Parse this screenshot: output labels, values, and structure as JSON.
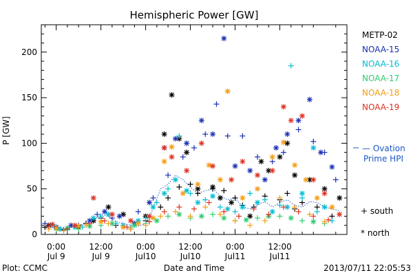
{
  "chart_data": {
    "type": "scatter",
    "title": "Hemispheric Power [GW]",
    "ylabel": "P [GW]",
    "xlabel": "Date and Time",
    "footer_left": "Plot: CCMC",
    "footer_right": "2013/07/11 22:05:53",
    "ylim": [
      0,
      230
    ],
    "yticks": [
      0,
      50,
      100,
      150,
      200
    ],
    "xlim_hours": [
      -4,
      78
    ],
    "xticks": [
      {
        "hours": 0,
        "time": "0:00",
        "date": "Jul 9"
      },
      {
        "hours": 12,
        "time": "12:00",
        "date": "Jul 9"
      },
      {
        "hours": 24,
        "time": "0:00",
        "date": "Jul10"
      },
      {
        "hours": 36,
        "time": "12:00",
        "date": "Jul10"
      },
      {
        "hours": 48,
        "time": "0:00",
        "date": "Jul11"
      },
      {
        "hours": 60,
        "time": "12:00",
        "date": "Jul11"
      }
    ],
    "legend": {
      "position": "right",
      "ovation_label_1": "— Ovation",
      "ovation_label_2": "Prime HPI",
      "south_label": "+ south",
      "north_label": "* north"
    },
    "ovation": {
      "name": "Ovation Prime HPI",
      "color": "#1a56c8",
      "x": [
        -4,
        -2,
        0,
        2,
        4,
        6,
        8,
        10,
        12,
        14,
        16,
        18,
        20,
        22,
        24,
        26,
        28,
        30,
        32,
        34,
        36,
        38,
        40,
        42,
        44,
        46,
        48,
        50,
        52,
        54,
        56,
        58,
        60,
        62,
        64,
        66,
        68,
        70,
        72,
        74,
        76
      ],
      "values": [
        8,
        7,
        9,
        6,
        8,
        10,
        12,
        15,
        22,
        20,
        14,
        12,
        10,
        9,
        12,
        28,
        50,
        55,
        65,
        60,
        52,
        45,
        48,
        50,
        42,
        38,
        40,
        30,
        28,
        32,
        36,
        30,
        35,
        38,
        32,
        30,
        36,
        35,
        30,
        28,
        26
      ]
    },
    "series": [
      {
        "name": "METP-02",
        "color": "#000000",
        "south": [
          [
            -3,
            8
          ],
          [
            2,
            5
          ],
          [
            8,
            12
          ],
          [
            12,
            18
          ],
          [
            16,
            10
          ],
          [
            20,
            6
          ],
          [
            24,
            15
          ],
          [
            28,
            30
          ],
          [
            30,
            40
          ],
          [
            33,
            52
          ],
          [
            36,
            55
          ],
          [
            38,
            45
          ],
          [
            42,
            50
          ],
          [
            45,
            48
          ],
          [
            48,
            40
          ],
          [
            50,
            32
          ],
          [
            53,
            30
          ],
          [
            56,
            42
          ],
          [
            60,
            38
          ],
          [
            62,
            45
          ],
          [
            64,
            28
          ],
          [
            66,
            35
          ],
          [
            70,
            30
          ],
          [
            74,
            20
          ]
        ],
        "north": [
          [
            -2,
            10
          ],
          [
            6,
            8
          ],
          [
            10,
            15
          ],
          [
            14,
            30
          ],
          [
            18,
            22
          ],
          [
            24,
            20
          ],
          [
            29,
            110
          ],
          [
            31,
            153
          ],
          [
            33,
            105
          ],
          [
            35,
            90
          ],
          [
            38,
            50
          ],
          [
            42,
            52
          ],
          [
            44,
            40
          ],
          [
            47,
            35
          ],
          [
            52,
            20
          ],
          [
            55,
            80
          ],
          [
            57,
            70
          ],
          [
            60,
            85
          ],
          [
            62,
            100
          ],
          [
            64,
            65
          ],
          [
            68,
            60
          ],
          [
            72,
            50
          ],
          [
            76,
            40
          ]
        ]
      },
      {
        "name": "NOAA-15",
        "color": "#1a2fb5",
        "south": [
          [
            -3,
            12
          ],
          [
            1,
            6
          ],
          [
            6,
            10
          ],
          [
            11,
            22
          ],
          [
            15,
            18
          ],
          [
            22,
            25
          ],
          [
            26,
            40
          ],
          [
            30,
            65
          ],
          [
            34,
            85
          ],
          [
            37,
            95
          ],
          [
            40,
            110
          ],
          [
            43,
            143
          ],
          [
            46,
            108
          ],
          [
            50,
            108
          ],
          [
            54,
            85
          ],
          [
            58,
            80
          ],
          [
            61,
            90
          ],
          [
            65,
            115
          ],
          [
            69,
            102
          ],
          [
            72,
            90
          ],
          [
            75,
            60
          ]
        ],
        "north": [
          [
            0,
            8
          ],
          [
            4,
            10
          ],
          [
            9,
            15
          ],
          [
            13,
            25
          ],
          [
            17,
            20
          ],
          [
            21,
            12
          ],
          [
            25,
            35
          ],
          [
            29,
            95
          ],
          [
            32,
            105
          ],
          [
            35,
            100
          ],
          [
            39,
            125
          ],
          [
            42,
            110
          ],
          [
            45,
            215
          ],
          [
            48,
            75
          ],
          [
            52,
            70
          ],
          [
            56,
            60
          ],
          [
            59,
            95
          ],
          [
            62,
            110
          ],
          [
            65,
            125
          ],
          [
            68,
            148
          ],
          [
            71,
            90
          ],
          [
            74,
            74
          ]
        ]
      },
      {
        "name": "NOAA-16",
        "color": "#00bcd4",
        "south": [
          [
            -1,
            10
          ],
          [
            3,
            5
          ],
          [
            7,
            8
          ],
          [
            12,
            20
          ],
          [
            16,
            12
          ],
          [
            20,
            8
          ],
          [
            24,
            18
          ],
          [
            27,
            35
          ],
          [
            30,
            50
          ],
          [
            33,
            108
          ],
          [
            36,
            45
          ],
          [
            40,
            38
          ],
          [
            44,
            30
          ],
          [
            48,
            25
          ],
          [
            52,
            45
          ],
          [
            56,
            38
          ],
          [
            60,
            32
          ],
          [
            63,
            185
          ],
          [
            66,
            40
          ],
          [
            70,
            25
          ],
          [
            74,
            15
          ]
        ],
        "north": [
          [
            1,
            6
          ],
          [
            5,
            8
          ],
          [
            10,
            18
          ],
          [
            14,
            22
          ],
          [
            18,
            10
          ],
          [
            22,
            15
          ],
          [
            26,
            30
          ],
          [
            29,
            45
          ],
          [
            32,
            60
          ],
          [
            35,
            48
          ],
          [
            38,
            35
          ],
          [
            42,
            42
          ],
          [
            46,
            28
          ],
          [
            50,
            30
          ],
          [
            54,
            35
          ],
          [
            58,
            25
          ],
          [
            62,
            30
          ],
          [
            66,
            45
          ],
          [
            69,
            95
          ],
          [
            72,
            30
          ]
        ]
      },
      {
        "name": "NOAA-17",
        "color": "#2ecc71",
        "south": [
          [
            0,
            5
          ],
          [
            6,
            6
          ],
          [
            12,
            10
          ],
          [
            18,
            8
          ],
          [
            24,
            12
          ],
          [
            30,
            20
          ],
          [
            36,
            18
          ],
          [
            42,
            22
          ],
          [
            48,
            15
          ],
          [
            54,
            18
          ],
          [
            60,
            20
          ],
          [
            66,
            15
          ],
          [
            72,
            12
          ]
        ],
        "north": [
          [
            3,
            7
          ],
          [
            9,
            9
          ],
          [
            15,
            12
          ],
          [
            21,
            10
          ],
          [
            27,
            15
          ],
          [
            33,
            22
          ],
          [
            39,
            20
          ],
          [
            45,
            18
          ],
          [
            51,
            16
          ],
          [
            57,
            20
          ],
          [
            63,
            18
          ],
          [
            69,
            14
          ]
        ]
      },
      {
        "name": "NOAA-18",
        "color": "#f39c12",
        "south": [
          [
            -2,
            6
          ],
          [
            2,
            4
          ],
          [
            8,
            10
          ],
          [
            14,
            12
          ],
          [
            20,
            6
          ],
          [
            24,
            10
          ],
          [
            28,
            20
          ],
          [
            32,
            25
          ],
          [
            36,
            20
          ],
          [
            40,
            30
          ],
          [
            44,
            22
          ],
          [
            48,
            15
          ],
          [
            52,
            10
          ],
          [
            56,
            15
          ],
          [
            60,
            40
          ],
          [
            64,
            30
          ],
          [
            68,
            22
          ],
          [
            72,
            14
          ]
        ],
        "north": [
          [
            0,
            7
          ],
          [
            6,
            9
          ],
          [
            12,
            14
          ],
          [
            18,
            8
          ],
          [
            22,
            12
          ],
          [
            26,
            18
          ],
          [
            29,
            80
          ],
          [
            31,
            96
          ],
          [
            34,
            45
          ],
          [
            38,
            55
          ],
          [
            41,
            76
          ],
          [
            44,
            60
          ],
          [
            46,
            157
          ],
          [
            50,
            40
          ],
          [
            54,
            50
          ],
          [
            58,
            85
          ],
          [
            61,
            101
          ],
          [
            64,
            76
          ],
          [
            67,
            60
          ],
          [
            70,
            40
          ],
          [
            74,
            30
          ]
        ]
      },
      {
        "name": "NOAA-19",
        "color": "#e03020",
        "south": [
          [
            -2,
            9
          ],
          [
            3,
            6
          ],
          [
            9,
            12
          ],
          [
            13,
            15
          ],
          [
            19,
            8
          ],
          [
            25,
            14
          ],
          [
            29,
            25
          ],
          [
            33,
            30
          ],
          [
            37,
            28
          ],
          [
            41,
            35
          ],
          [
            45,
            25
          ],
          [
            49,
            20
          ],
          [
            53,
            28
          ],
          [
            57,
            22
          ],
          [
            61,
            30
          ],
          [
            65,
            25
          ],
          [
            69,
            20
          ],
          [
            73,
            16
          ]
        ],
        "north": [
          [
            -1,
            11
          ],
          [
            5,
            10
          ],
          [
            10,
            40
          ],
          [
            15,
            22
          ],
          [
            20,
            15
          ],
          [
            25,
            20
          ],
          [
            29,
            95
          ],
          [
            31,
            85
          ],
          [
            35,
            70
          ],
          [
            39,
            100
          ],
          [
            42,
            75
          ],
          [
            47,
            60
          ],
          [
            50,
            80
          ],
          [
            54,
            65
          ],
          [
            58,
            70
          ],
          [
            61,
            140
          ],
          [
            63,
            125
          ],
          [
            66,
            130
          ],
          [
            69,
            60
          ],
          [
            72,
            45
          ],
          [
            76,
            22
          ]
        ]
      }
    ]
  }
}
